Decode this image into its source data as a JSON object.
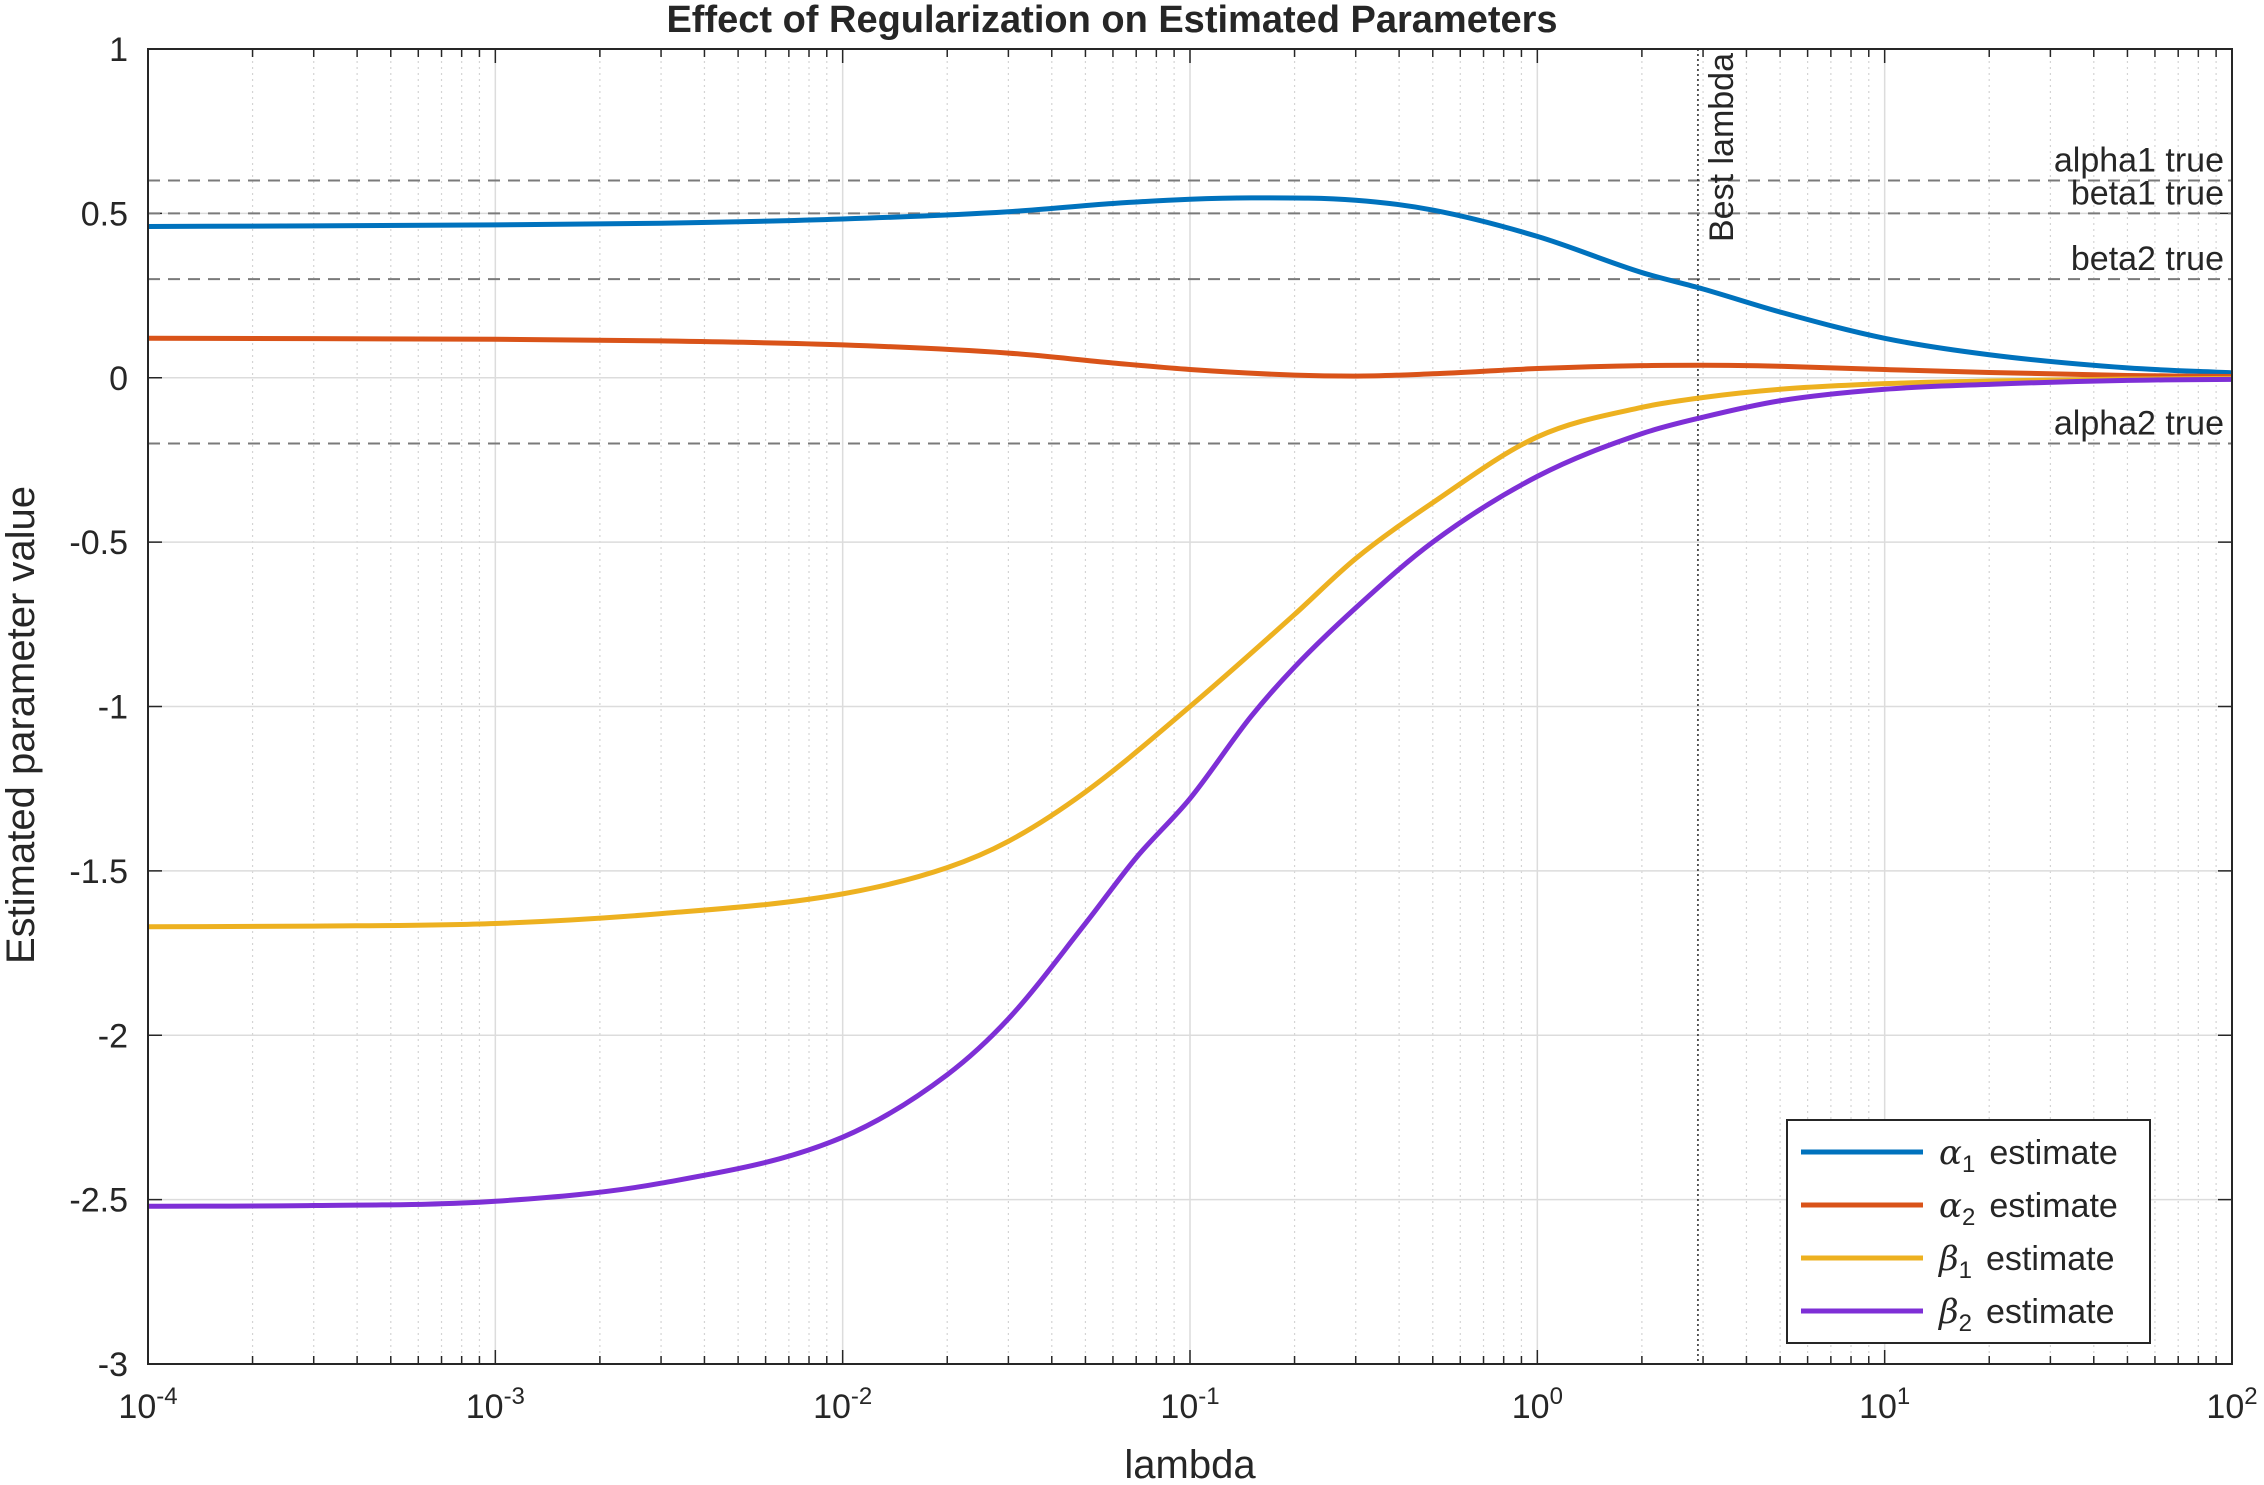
{
  "chart_data": {
    "type": "line",
    "title": "Effect of Regularization on Estimated Parameters",
    "xlabel": "lambda",
    "ylabel": "Estimated parameter value",
    "xscale": "log",
    "xlim": [
      0.0001,
      100
    ],
    "ylim": [
      -3,
      1
    ],
    "grid": true,
    "minor_grid_x": true,
    "legend_position": "bottom-right",
    "x_tick_labels": [
      {
        "base": "10",
        "exp": "-4",
        "value": 0.0001
      },
      {
        "base": "10",
        "exp": "-3",
        "value": 0.001
      },
      {
        "base": "10",
        "exp": "-2",
        "value": 0.01
      },
      {
        "base": "10",
        "exp": "-1",
        "value": 0.1
      },
      {
        "base": "10",
        "exp": "0",
        "value": 1
      },
      {
        "base": "10",
        "exp": "1",
        "value": 10
      },
      {
        "base": "10",
        "exp": "2",
        "value": 100
      }
    ],
    "y_tick_labels": [
      {
        "label": "1",
        "value": 1
      },
      {
        "label": "0.5",
        "value": 0.5
      },
      {
        "label": "0",
        "value": 0
      },
      {
        "label": "-0.5",
        "value": -0.5
      },
      {
        "label": "-1",
        "value": -1
      },
      {
        "label": "-1.5",
        "value": -1.5
      },
      {
        "label": "-2",
        "value": -2
      },
      {
        "label": "-2.5",
        "value": -2.5
      },
      {
        "label": "-3",
        "value": -3
      }
    ],
    "reference_lines": [
      {
        "label": "alpha1 true",
        "y": 0.6
      },
      {
        "label": "beta1 true",
        "y": 0.5
      },
      {
        "label": "beta2 true",
        "y": 0.3
      },
      {
        "label": "alpha2 true",
        "y": -0.2
      }
    ],
    "vertical_marker": {
      "label": "Best lambda",
      "x": 2.9
    },
    "series": [
      {
        "name": "α1",
        "name_symbol": "α",
        "name_sub": "1",
        "name_suffix": "estimate",
        "color": "#0072BD",
        "x": [
          0.0001,
          0.0003,
          0.001,
          0.003,
          0.01,
          0.03,
          0.06,
          0.1,
          0.15,
          0.3,
          0.5,
          1,
          2,
          3,
          5,
          10,
          20,
          50,
          100
        ],
        "y": [
          0.46,
          0.462,
          0.465,
          0.47,
          0.483,
          0.505,
          0.53,
          0.543,
          0.547,
          0.54,
          0.51,
          0.43,
          0.32,
          0.27,
          0.2,
          0.12,
          0.07,
          0.03,
          0.015
        ]
      },
      {
        "name": "α2",
        "name_symbol": "α",
        "name_sub": "2",
        "name_suffix": "estimate",
        "color": "#D95319",
        "x": [
          0.0001,
          0.0003,
          0.001,
          0.003,
          0.01,
          0.03,
          0.06,
          0.1,
          0.2,
          0.3,
          0.5,
          1,
          2,
          3,
          5,
          10,
          20,
          50,
          100
        ],
        "y": [
          0.12,
          0.119,
          0.117,
          0.112,
          0.1,
          0.075,
          0.045,
          0.025,
          0.008,
          0.005,
          0.012,
          0.028,
          0.037,
          0.038,
          0.035,
          0.025,
          0.016,
          0.007,
          0.004
        ]
      },
      {
        "name": "β1",
        "name_symbol": "β",
        "name_sub": "1",
        "name_suffix": "estimate",
        "color": "#EDB120",
        "x": [
          0.0001,
          0.0003,
          0.001,
          0.003,
          0.01,
          0.02,
          0.03,
          0.05,
          0.1,
          0.2,
          0.3,
          0.5,
          1,
          2,
          3,
          5,
          10,
          20,
          50,
          100
        ],
        "y": [
          -1.67,
          -1.668,
          -1.66,
          -1.63,
          -1.57,
          -1.49,
          -1.41,
          -1.26,
          -1.0,
          -0.72,
          -0.55,
          -0.38,
          -0.18,
          -0.09,
          -0.06,
          -0.035,
          -0.018,
          -0.01,
          -0.004,
          -0.002
        ]
      },
      {
        "name": "β2",
        "name_symbol": "β",
        "name_sub": "2",
        "name_suffix": "estimate",
        "color": "#7E2FD6",
        "x": [
          0.0001,
          0.0003,
          0.001,
          0.003,
          0.01,
          0.02,
          0.03,
          0.05,
          0.07,
          0.1,
          0.15,
          0.2,
          0.3,
          0.5,
          1,
          2,
          3,
          5,
          10,
          20,
          50,
          100
        ],
        "y": [
          -2.52,
          -2.518,
          -2.505,
          -2.45,
          -2.31,
          -2.12,
          -1.95,
          -1.66,
          -1.46,
          -1.28,
          -1.03,
          -0.88,
          -0.7,
          -0.5,
          -0.3,
          -0.17,
          -0.12,
          -0.07,
          -0.035,
          -0.02,
          -0.008,
          -0.005
        ]
      }
    ]
  }
}
